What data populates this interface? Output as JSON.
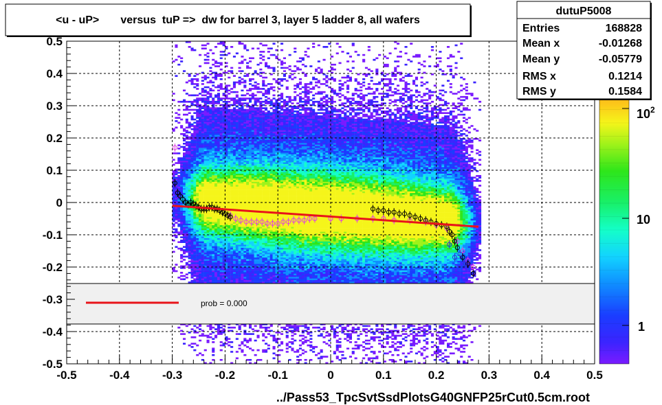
{
  "chart_data": {
    "type": "heatmap",
    "title": "<u - uP>       versus  tuP =>  dw for barrel 3, layer 5 ladder 8, all wafers",
    "xlabel": "../Pass53_TpcSvtSsdPlotsG40GNFP25rCut0.5cm.root",
    "ylabel": "",
    "xlim": [
      -0.5,
      0.5
    ],
    "ylim": [
      -0.5,
      0.5
    ],
    "x_ticks": [
      "-0.5",
      "-0.4",
      "-0.3",
      "-0.2",
      "-0.1",
      "0",
      "0.1",
      "0.2",
      "0.3",
      "0.4",
      "0.5"
    ],
    "y_ticks": [
      "-0.5",
      "-0.4",
      "-0.3",
      "-0.2",
      "-0.1",
      "0",
      "0.1",
      "0.2",
      "0.3",
      "0.4",
      "0.5"
    ],
    "grid": true,
    "colorbar": {
      "scale": "log",
      "labels": [
        {
          "text": "1",
          "value": 1
        },
        {
          "text": "10",
          "value": 10
        },
        {
          "text": "10",
          "sup": "2",
          "value": 100
        }
      ]
    },
    "stats": {
      "name": "dutuP5008",
      "rows": [
        {
          "label": "Entries",
          "value": "168828"
        },
        {
          "label": "Mean x",
          "value": "-0.01268"
        },
        {
          "label": "Mean y",
          "value": "-0.05779"
        },
        {
          "label": "RMS x",
          "value": "0.1214"
        },
        {
          "label": "RMS y",
          "value": "0.1584"
        }
      ]
    },
    "legend": {
      "placement": "center-band",
      "entries": [
        {
          "label": "prob = 0.000",
          "color": "#e8141a"
        }
      ]
    },
    "fit_line": {
      "color": "#e8141a",
      "x": [
        -0.3,
        0.28
      ],
      "y": [
        -0.01,
        -0.075
      ]
    },
    "profile_black": {
      "x": [
        -0.295,
        -0.29,
        -0.285,
        -0.28,
        -0.275,
        -0.27,
        -0.265,
        -0.26,
        -0.255,
        -0.25,
        -0.245,
        -0.24,
        -0.235,
        -0.23,
        -0.225,
        -0.22,
        -0.215,
        -0.21,
        -0.205,
        -0.2,
        -0.195,
        -0.19,
        0.08,
        0.09,
        0.1,
        0.11,
        0.12,
        0.13,
        0.14,
        0.15,
        0.16,
        0.17,
        0.18,
        0.19,
        0.2,
        0.21,
        0.22,
        0.225,
        0.23,
        0.235,
        0.24,
        0.25,
        0.26,
        0.27
      ],
      "y": [
        0.06,
        0.03,
        0.02,
        0.01,
        0.0,
        -0.005,
        0.0,
        -0.005,
        -0.01,
        -0.015,
        -0.02,
        -0.02,
        -0.02,
        -0.015,
        -0.015,
        -0.02,
        -0.02,
        -0.025,
        -0.03,
        -0.035,
        -0.04,
        -0.045,
        -0.02,
        -0.025,
        -0.025,
        -0.03,
        -0.03,
        -0.035,
        -0.035,
        -0.04,
        -0.045,
        -0.05,
        -0.055,
        -0.06,
        -0.065,
        -0.07,
        -0.075,
        -0.09,
        -0.1,
        -0.12,
        -0.14,
        -0.17,
        -0.19,
        -0.22
      ]
    },
    "profile_magenta": {
      "x": [
        -0.295,
        -0.19,
        -0.18,
        -0.17,
        -0.16,
        -0.15,
        -0.14,
        -0.13,
        -0.12,
        -0.11,
        -0.1,
        -0.09,
        -0.08,
        -0.07,
        -0.06,
        -0.05,
        -0.04,
        -0.03,
        0.0,
        0.02,
        0.05,
        0.08,
        0.1,
        0.12,
        0.15,
        0.18,
        0.2,
        0.22,
        0.24,
        0.25,
        0.26,
        0.27
      ],
      "y": [
        0.17,
        -0.04,
        -0.05,
        -0.055,
        -0.06,
        -0.06,
        -0.06,
        -0.06,
        -0.065,
        -0.065,
        -0.065,
        -0.06,
        -0.06,
        -0.055,
        -0.055,
        -0.055,
        -0.05,
        -0.05,
        -0.05,
        -0.05,
        -0.05,
        -0.05,
        -0.05,
        -0.055,
        -0.055,
        -0.06,
        -0.07,
        -0.08,
        -0.12,
        -0.15,
        -0.18,
        -0.2
      ]
    },
    "profile_blue": {
      "x": [
        0.225,
        0.235,
        0.245,
        0.255
      ],
      "y": [
        -0.13,
        -0.17,
        -0.16,
        -0.19
      ]
    }
  }
}
